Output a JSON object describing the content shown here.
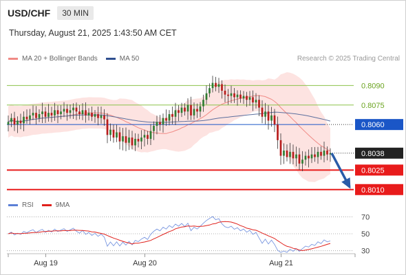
{
  "header": {
    "symbol": "USD/CHF",
    "timeframe": "30 MIN",
    "datetime": "Thursday, August 21, 2025 1:43:50 AM CET",
    "credit": "Research © 2025 Trading Central"
  },
  "legend": {
    "bollinger_label": "MA 20 + Bollinger Bands",
    "bollinger_color": "#f08a85",
    "ma50_label": "MA 50",
    "ma50_color": "#2f4f8f"
  },
  "rsi_legend": {
    "rsi_label": "RSI",
    "rsi_color": "#5b7fd6",
    "ma9_label": "9MA",
    "ma9_color": "#e0201b"
  },
  "colors": {
    "up_candle": "#2e7d32",
    "down_candle": "#b71c1c",
    "resistance": "#8bc34a",
    "pivot": "#1a56c7",
    "support": "#e81b1b",
    "current": "#222222",
    "band_fill": "#fde0de",
    "arrow": "#2a5ca8"
  },
  "chart_data": [
    {
      "type": "candlestick",
      "title": "USD/CHF",
      "ylim": [
        0.8003,
        0.8105
      ],
      "x_ticks": [
        "Aug 19",
        "Aug 20",
        "Aug 21"
      ],
      "price_levels": [
        {
          "value": 0.809,
          "label": "0.8090",
          "kind": "resistance"
        },
        {
          "value": 0.8075,
          "label": "0.8075",
          "kind": "resistance"
        },
        {
          "value": 0.806,
          "label": "0.8060",
          "kind": "pivot"
        },
        {
          "value": 0.8038,
          "label": "0.8038",
          "kind": "current"
        },
        {
          "value": 0.8025,
          "label": "0.8025",
          "kind": "support"
        },
        {
          "value": 0.801,
          "label": "0.8010",
          "kind": "support"
        }
      ],
      "close": [
        0.8062,
        0.8065,
        0.806,
        0.8063,
        0.8061,
        0.8066,
        0.8064,
        0.8067,
        0.8069,
        0.8065,
        0.8068,
        0.807,
        0.8066,
        0.8069,
        0.8067,
        0.8071,
        0.8068,
        0.807,
        0.8072,
        0.8069,
        0.8071,
        0.8073,
        0.807,
        0.8068,
        0.8071,
        0.8067,
        0.8069,
        0.8066,
        0.8068,
        0.8065,
        0.8067,
        0.8064,
        0.8052,
        0.8056,
        0.805,
        0.8054,
        0.8047,
        0.8051,
        0.8046,
        0.805,
        0.8044,
        0.8049,
        0.8047,
        0.805,
        0.8052,
        0.8049,
        0.8055,
        0.8059,
        0.8062,
        0.806,
        0.8065,
        0.8063,
        0.8068,
        0.8066,
        0.8071,
        0.8069,
        0.8073,
        0.807,
        0.8075,
        0.8067,
        0.8072,
        0.807,
        0.8074,
        0.8079,
        0.8084,
        0.8088,
        0.8092,
        0.8089,
        0.8091,
        0.8086,
        0.8083,
        0.8082,
        0.8084,
        0.8081,
        0.8083,
        0.808,
        0.8082,
        0.8079,
        0.8081,
        0.8077,
        0.8079,
        0.8073,
        0.8066,
        0.807,
        0.8063,
        0.8067,
        0.806,
        0.8048,
        0.8036,
        0.804,
        0.8035,
        0.8039,
        0.8034,
        0.8037,
        0.803,
        0.8033,
        0.8036,
        0.8034,
        0.8037,
        0.8035,
        0.8039,
        0.8036,
        0.804,
        0.8037,
        0.8038
      ],
      "series": [
        {
          "name": "MA 20 + Bollinger Bands"
        },
        {
          "name": "MA 50"
        }
      ]
    },
    {
      "type": "line",
      "ylim": [
        20,
        80
      ],
      "y_ticks": [
        70,
        50,
        30
      ],
      "series": [
        {
          "name": "RSI"
        },
        {
          "name": "9MA"
        }
      ]
    }
  ]
}
